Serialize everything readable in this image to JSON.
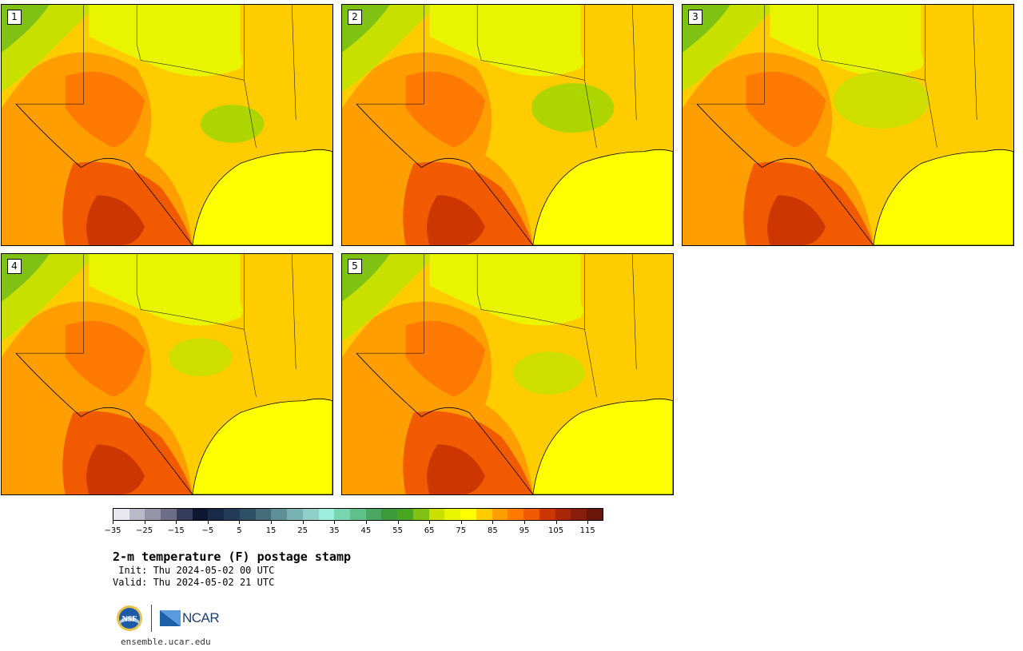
{
  "panels": [
    {
      "label": "1"
    },
    {
      "label": "2"
    },
    {
      "label": "3"
    },
    {
      "label": "4"
    },
    {
      "label": "5"
    }
  ],
  "colorbar": {
    "colors": [
      "#e8e8ee",
      "#b9b9c8",
      "#9494a6",
      "#6e6e86",
      "#343d5c",
      "#0d1730",
      "#182a47",
      "#243b57",
      "#2f4f66",
      "#446c7a",
      "#5e8f96",
      "#78b2b2",
      "#8fd1c8",
      "#9eeee0",
      "#78d6b0",
      "#5fc08a",
      "#4aa862",
      "#3c9a3a",
      "#4aa521",
      "#80c214",
      "#c8e000",
      "#e9f500",
      "#ffff00",
      "#ffcc00",
      "#ff9e00",
      "#ff7a00",
      "#f25a00",
      "#cc3600",
      "#a8260a",
      "#8a1c0a",
      "#6a140a"
    ],
    "tick_labels": [
      "−35",
      "−25",
      "−15",
      "−5",
      "5",
      "15",
      "25",
      "35",
      "45",
      "55",
      "65",
      "75",
      "85",
      "95",
      "105",
      "115"
    ]
  },
  "title": "2-m temperature (F) postage stamp",
  "init": " Init: Thu 2024-05-02 00 UTC",
  "valid": "Valid: Thu 2024-05-02 21 UTC",
  "logos": {
    "nsf": "NSF",
    "ncar": "NCAR"
  },
  "site": "ensemble.ucar.edu"
}
